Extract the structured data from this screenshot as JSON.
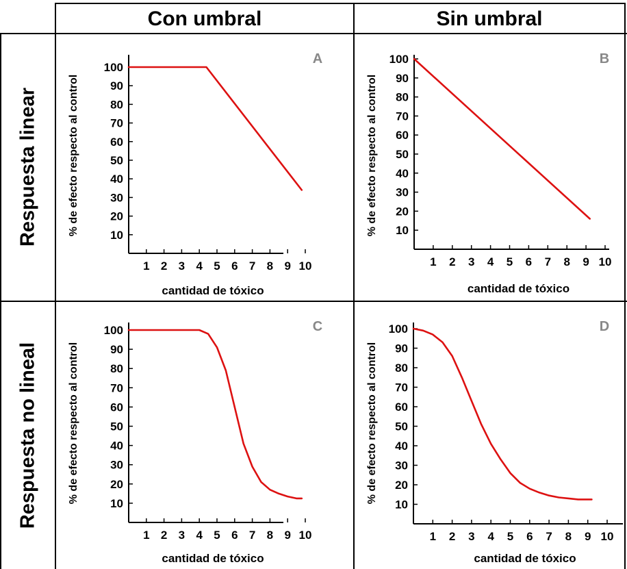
{
  "table": {
    "columns": [
      "Con umbral",
      "Sin umbral"
    ],
    "rows": [
      "Respuesta linear",
      "Respuesta no lineal"
    ]
  },
  "colors": {
    "curve": "#dd1111",
    "axis": "#000000",
    "panel_letter": "#888888"
  },
  "chart_data": [
    {
      "type": "line",
      "panel_label": "A",
      "xlabel": "cantidad de tóxico",
      "ylabel": "% de efecto respecto al control",
      "xticks": [
        1,
        2,
        3,
        4,
        5,
        6,
        7,
        8,
        9,
        10
      ],
      "yticks": [
        10,
        20,
        30,
        40,
        50,
        60,
        70,
        80,
        90,
        100
      ],
      "xlim": [
        0,
        10.5
      ],
      "ylim": [
        0,
        105
      ],
      "grid": false,
      "series": [
        {
          "x": [
            0,
            4.4,
            9.8
          ],
          "y": [
            100,
            100,
            34
          ]
        }
      ]
    },
    {
      "type": "line",
      "panel_label": "B",
      "xlabel": "cantidad de tóxico",
      "ylabel": "% de efecto respecto al control",
      "xticks": [
        1,
        2,
        3,
        4,
        5,
        6,
        7,
        8,
        9,
        10
      ],
      "yticks": [
        10,
        20,
        30,
        40,
        50,
        60,
        70,
        80,
        90,
        100
      ],
      "xlim": [
        0,
        10.5
      ],
      "ylim": [
        0,
        105
      ],
      "grid": false,
      "series": [
        {
          "x": [
            0,
            9.2
          ],
          "y": [
            100,
            16
          ]
        }
      ]
    },
    {
      "type": "line",
      "panel_label": "C",
      "xlabel": "cantidad de tóxico",
      "ylabel": "% de efecto respecto al control",
      "xticks": [
        1,
        2,
        3,
        4,
        5,
        6,
        7,
        8,
        9,
        10
      ],
      "yticks": [
        10,
        20,
        30,
        40,
        50,
        60,
        70,
        80,
        90,
        100
      ],
      "xlim": [
        0,
        10.5
      ],
      "ylim": [
        0,
        105
      ],
      "grid": false,
      "series": [
        {
          "x": [
            0,
            1,
            2,
            3,
            4,
            4.5,
            5,
            5.5,
            6,
            6.5,
            7,
            7.5,
            8,
            8.5,
            9,
            9.5,
            9.8
          ],
          "y": [
            100,
            100,
            100,
            100,
            100,
            98,
            91,
            79,
            60,
            41,
            29,
            21,
            17,
            15,
            13.5,
            12.5,
            12.5
          ]
        }
      ]
    },
    {
      "type": "line",
      "panel_label": "D",
      "xlabel": "cantidad de tóxico",
      "ylabel": "% de efecto respecto al control",
      "xticks": [
        1,
        2,
        3,
        4,
        5,
        6,
        7,
        8,
        9,
        10
      ],
      "yticks": [
        10,
        20,
        30,
        40,
        50,
        60,
        70,
        80,
        90,
        100
      ],
      "xlim": [
        0,
        10.5
      ],
      "ylim": [
        0,
        105
      ],
      "grid": false,
      "series": [
        {
          "x": [
            0,
            0.5,
            1,
            1.5,
            2,
            2.5,
            3,
            3.5,
            4,
            4.5,
            5,
            5.5,
            6,
            6.5,
            7,
            7.5,
            8,
            8.5,
            9.2
          ],
          "y": [
            100,
            99,
            97,
            93,
            86,
            75,
            63,
            51,
            41,
            33,
            26,
            21,
            18,
            16,
            14.5,
            13.5,
            13,
            12.5,
            12.5
          ]
        }
      ]
    }
  ]
}
